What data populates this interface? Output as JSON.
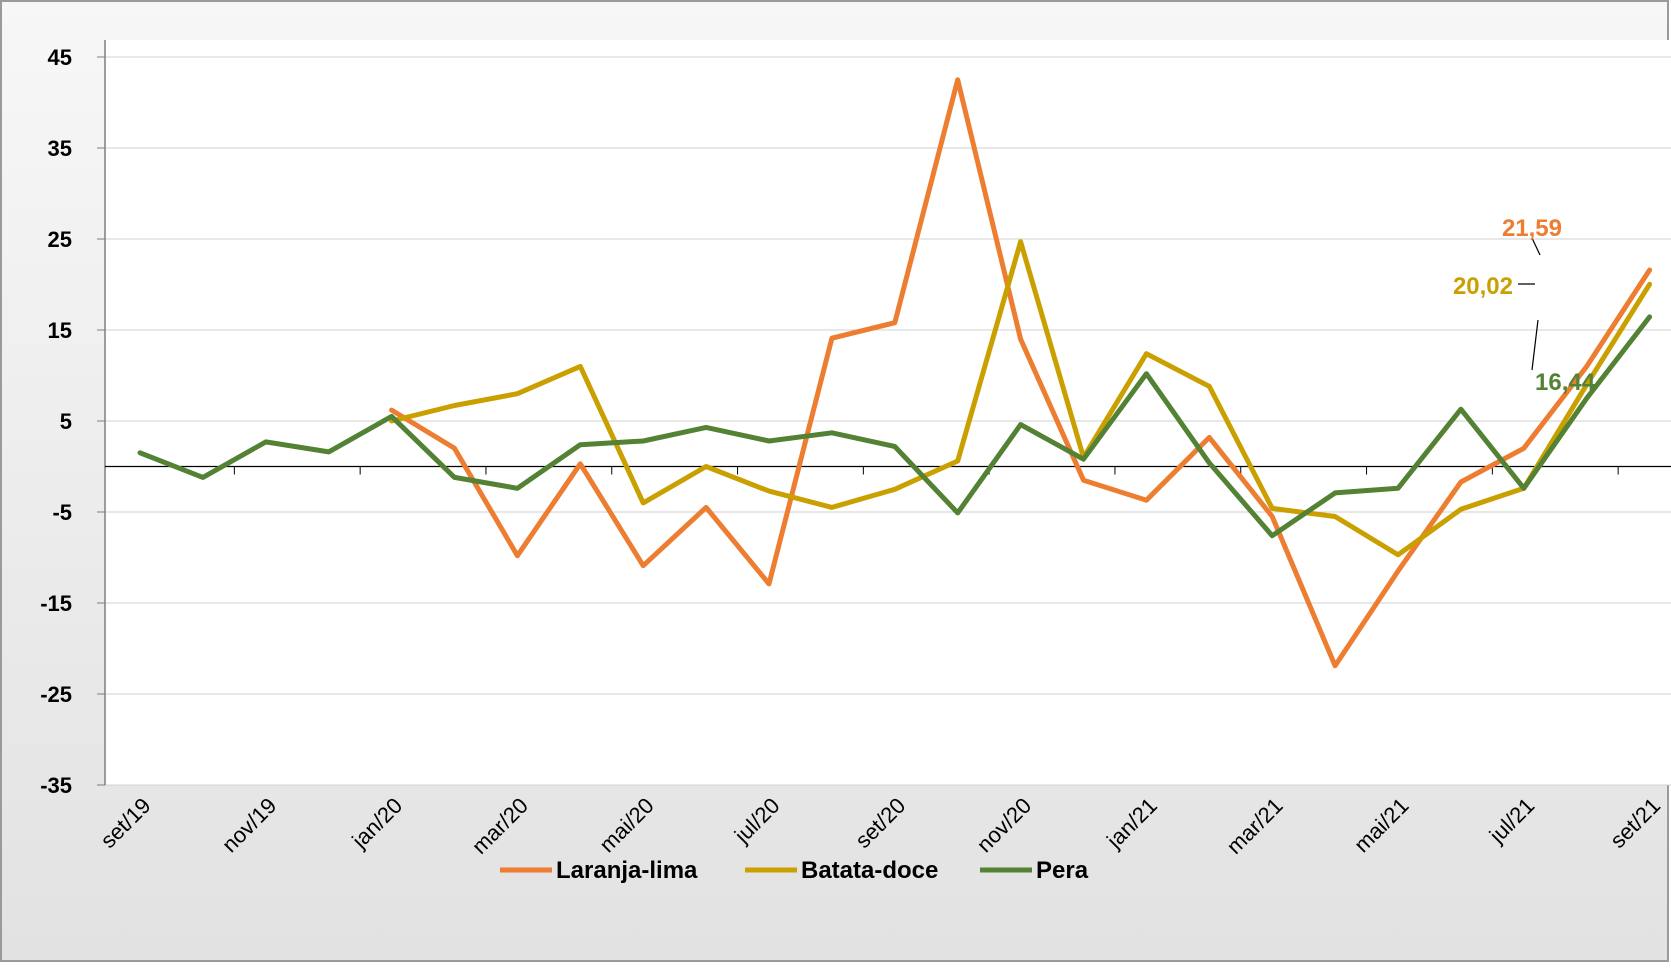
{
  "chart_data": {
    "type": "line",
    "title": "",
    "xlabel": "",
    "ylabel": "",
    "ylim": [
      -35,
      45
    ],
    "yticks": [
      45,
      35,
      25,
      15,
      5,
      -5,
      -15,
      -25,
      -35
    ],
    "ytick_labels": [
      "45",
      "35",
      "25",
      "15",
      "5",
      "-5",
      "-15",
      "-25",
      "-35"
    ],
    "x": [
      "set/19",
      "out/19",
      "nov/19",
      "dez/19",
      "jan/20",
      "fev/20",
      "mar/20",
      "abr/20",
      "mai/20",
      "jun/20",
      "jul/20",
      "ago/20",
      "set/20",
      "out/20",
      "nov/20",
      "dez/20",
      "jan/21",
      "fev/21",
      "mar/21",
      "abr/21",
      "mai/21",
      "jun/21",
      "jul/21",
      "ago/21",
      "set/21"
    ],
    "x_tick_labels": [
      "set/19",
      "nov/19",
      "jan/20",
      "mar/20",
      "mai/20",
      "jul/20",
      "set/20",
      "nov/20",
      "jan/21",
      "mar/21",
      "mai/21",
      "jul/21",
      "set/21"
    ],
    "grid": true,
    "legend_position": "bottom",
    "series": [
      {
        "name": "Laranja-lima",
        "color": "#ED7D31",
        "values": [
          null,
          null,
          null,
          null,
          6.2,
          2.0,
          -9.8,
          0.3,
          -10.9,
          -4.5,
          -12.9,
          14.1,
          15.8,
          42.5,
          14.0,
          -1.5,
          -3.7,
          3.2,
          -5.5,
          -21.9,
          -11.5,
          -1.7,
          2.0,
          11.0,
          21.59
        ],
        "end_label": "21,59"
      },
      {
        "name": "Batata-doce",
        "color": "#C9A000",
        "values": [
          null,
          null,
          null,
          null,
          5.0,
          6.7,
          8.0,
          11.0,
          -4.0,
          0.0,
          -2.7,
          -4.5,
          -2.5,
          0.6,
          24.7,
          1.0,
          12.4,
          8.8,
          -4.6,
          -5.5,
          -9.7,
          -4.7,
          -2.4,
          9.0,
          20.02
        ],
        "end_label": "20,02"
      },
      {
        "name": "Pera",
        "color": "#548235",
        "values": [
          1.5,
          -1.2,
          2.7,
          1.6,
          5.5,
          -1.2,
          -2.4,
          2.4,
          2.8,
          4.3,
          2.8,
          3.7,
          2.2,
          -5.1,
          4.6,
          0.8,
          10.2,
          0.4,
          -7.6,
          -2.9,
          -2.4,
          6.3,
          -2.4,
          7.5,
          16.44
        ],
        "end_label": "16,44"
      }
    ]
  }
}
